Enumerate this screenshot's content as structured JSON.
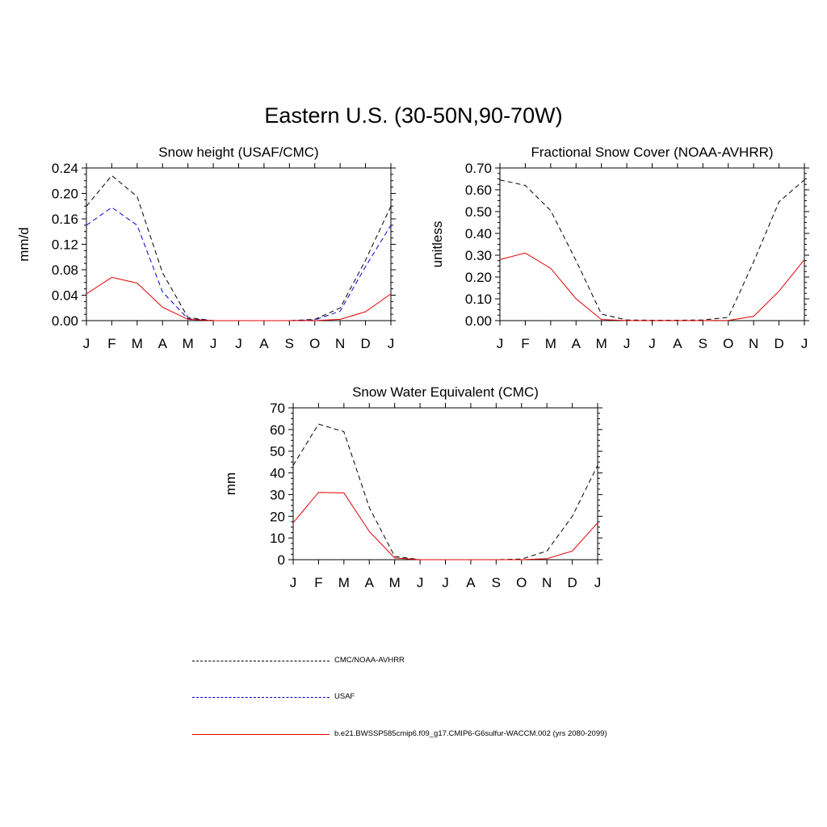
{
  "title": "Eastern U.S. (30-50N,90-70W)",
  "months": [
    "J",
    "F",
    "M",
    "A",
    "M",
    "J",
    "J",
    "A",
    "S",
    "O",
    "N",
    "D",
    "J"
  ],
  "series_styles": [
    {
      "key": "obs",
      "color": "#000000",
      "dash": "dashed"
    },
    {
      "key": "usaf",
      "color": "#0000cc",
      "dash": "dashed"
    },
    {
      "key": "model",
      "color": "#e00000",
      "dash": "solid"
    }
  ],
  "legend": [
    {
      "label": "CMC/NOAA-AVHRR",
      "color": "#000000",
      "dash": "dashed"
    },
    {
      "label": "USAF",
      "color": "#0000cc",
      "dash": "dashed"
    },
    {
      "label": "b.e21.BWSSP585cmip6.f09_g17.CMIP6-G6sulfur-WACCM.002 (yrs 2080-2099)",
      "color": "#e00000",
      "dash": "solid"
    }
  ],
  "chart_data": [
    {
      "type": "line",
      "title": "Snow height (USAF/CMC)",
      "xlabel": "",
      "ylabel": "mm/d",
      "ylim": [
        0,
        0.24
      ],
      "yticks": [
        "0.00",
        "0.04",
        "0.08",
        "0.12",
        "0.16",
        "0.20",
        "0.24"
      ],
      "x": [
        "J",
        "F",
        "M",
        "A",
        "M",
        "J",
        "J",
        "A",
        "S",
        "O",
        "N",
        "D",
        "J"
      ],
      "series": [
        {
          "style": "obs",
          "values": [
            0.18,
            0.228,
            0.195,
            0.075,
            0.005,
            0.0,
            0.0,
            0.0,
            0.0,
            0.002,
            0.02,
            0.095,
            0.18
          ]
        },
        {
          "style": "usaf",
          "values": [
            0.15,
            0.178,
            0.15,
            0.045,
            0.003,
            0.0,
            0.0,
            0.0,
            0.0,
            0.001,
            0.015,
            0.085,
            0.15
          ]
        },
        {
          "style": "model",
          "values": [
            0.042,
            0.068,
            0.059,
            0.021,
            0.002,
            0.0,
            0.0,
            0.0,
            0.0,
            0.0,
            0.002,
            0.014,
            0.042
          ]
        }
      ]
    },
    {
      "type": "line",
      "title": "Fractional Snow Cover (NOAA-AVHRR)",
      "xlabel": "",
      "ylabel": "unitless",
      "ylim": [
        0,
        0.7
      ],
      "yticks": [
        "0.00",
        "0.10",
        "0.20",
        "0.30",
        "0.40",
        "0.50",
        "0.60",
        "0.70"
      ],
      "x": [
        "J",
        "F",
        "M",
        "A",
        "M",
        "J",
        "J",
        "A",
        "S",
        "O",
        "N",
        "D",
        "J"
      ],
      "series": [
        {
          "style": "obs",
          "values": [
            0.645,
            0.62,
            0.505,
            0.275,
            0.03,
            0.003,
            0.002,
            0.002,
            0.003,
            0.015,
            0.27,
            0.545,
            0.645
          ]
        },
        {
          "style": "model",
          "values": [
            0.28,
            0.31,
            0.24,
            0.1,
            0.005,
            0.0,
            0.0,
            0.0,
            0.0,
            0.001,
            0.02,
            0.135,
            0.28
          ]
        }
      ]
    },
    {
      "type": "line",
      "title": "Snow Water Equivalent (CMC)",
      "xlabel": "",
      "ylabel": "mm",
      "ylim": [
        0,
        70
      ],
      "yticks": [
        "0",
        "10",
        "20",
        "30",
        "40",
        "50",
        "60",
        "70"
      ],
      "x": [
        "J",
        "F",
        "M",
        "A",
        "M",
        "J",
        "J",
        "A",
        "S",
        "O",
        "N",
        "D",
        "J"
      ],
      "series": [
        {
          "style": "obs",
          "values": [
            43.5,
            62.5,
            59.0,
            24.0,
            1.5,
            0.0,
            0.0,
            0.0,
            0.0,
            0.3,
            4.0,
            20.0,
            43.5
          ]
        },
        {
          "style": "model",
          "values": [
            17.0,
            31.0,
            30.8,
            13.0,
            0.8,
            0.0,
            0.0,
            0.0,
            0.0,
            0.0,
            0.5,
            4.0,
            17.0
          ]
        }
      ]
    }
  ]
}
